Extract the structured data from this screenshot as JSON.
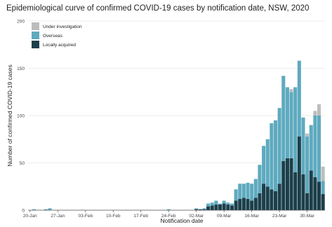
{
  "chart_data": {
    "type": "bar",
    "stacked": true,
    "title": "Epidemiological curve of confirmed COVID-19 cases by notification date, NSW, 2020",
    "xlabel": "Notification date",
    "ylabel": "Number of confirmed COVID-19 cases",
    "ylim": [
      0,
      200
    ],
    "yticks": [
      0,
      50,
      100,
      150,
      200
    ],
    "grid": true,
    "legend_position": "top-left",
    "x_start": "2020-01-20",
    "x_end": "2020-04-03",
    "xtick_labels": [
      {
        "date": "2020-01-20",
        "label": "20-Jan"
      },
      {
        "date": "2020-01-27",
        "label": "27-Jan"
      },
      {
        "date": "2020-02-03",
        "label": "03-Feb"
      },
      {
        "date": "2020-02-10",
        "label": "10-Feb"
      },
      {
        "date": "2020-02-17",
        "label": "17-Feb"
      },
      {
        "date": "2020-02-24",
        "label": "24-Feb"
      },
      {
        "date": "2020-03-02",
        "label": "02-Mar"
      },
      {
        "date": "2020-03-09",
        "label": "09-Mar"
      },
      {
        "date": "2020-03-16",
        "label": "16-Mar"
      },
      {
        "date": "2020-03-23",
        "label": "23-Mar"
      },
      {
        "date": "2020-03-30",
        "label": "30-Mar"
      }
    ],
    "series": [
      {
        "name": "Under investigation",
        "color": "#bdbdbd",
        "values": [
          0,
          0,
          0,
          0,
          0,
          0,
          0,
          0,
          0,
          0,
          0,
          0,
          0,
          0,
          0,
          0,
          0,
          0,
          0,
          0,
          0,
          0,
          0,
          0,
          0,
          0,
          0,
          0,
          0,
          0,
          0,
          0,
          0,
          0,
          0,
          0,
          0,
          0,
          0,
          0,
          0,
          0,
          0,
          0,
          0,
          0,
          0,
          0,
          0,
          0,
          0,
          0,
          0,
          0,
          0,
          0,
          0,
          0,
          0,
          0,
          0,
          0,
          0,
          0,
          0,
          0,
          3,
          0,
          0,
          0,
          3,
          0,
          5,
          12,
          15
        ]
      },
      {
        "name": "Overseas",
        "color": "#5eaabf",
        "values": [
          0,
          1,
          0,
          0,
          1,
          2,
          0,
          0,
          0,
          0,
          0,
          0,
          0,
          0,
          0,
          0,
          0,
          0,
          0,
          0,
          0,
          0,
          0,
          0,
          0,
          0,
          0,
          0,
          0,
          0,
          0,
          0,
          0,
          0,
          0,
          1,
          0,
          0,
          0,
          0,
          0,
          0,
          1,
          0,
          1,
          3,
          3,
          4,
          1,
          3,
          2,
          2,
          12,
          16,
          15,
          17,
          18,
          20,
          30,
          40,
          50,
          70,
          75,
          80,
          90,
          75,
          70,
          90,
          80,
          60,
          60,
          48,
          65,
          70,
          14
        ]
      },
      {
        "name": "Locally acquired",
        "color": "#1c3f4b",
        "values": [
          0,
          0,
          0,
          0,
          0,
          0,
          0,
          0,
          0,
          0,
          0,
          0,
          0,
          0,
          0,
          0,
          0,
          0,
          0,
          0,
          0,
          0,
          0,
          0,
          0,
          0,
          0,
          0,
          0,
          0,
          0,
          0,
          0,
          0,
          0,
          0,
          0,
          0,
          0,
          0,
          0,
          0,
          1,
          1,
          1,
          4,
          5,
          6,
          6,
          7,
          6,
          5,
          10,
          12,
          13,
          12,
          10,
          13,
          18,
          28,
          25,
          22,
          20,
          28,
          52,
          55,
          55,
          40,
          78,
          38,
          18,
          42,
          35,
          30,
          17
        ]
      }
    ]
  }
}
